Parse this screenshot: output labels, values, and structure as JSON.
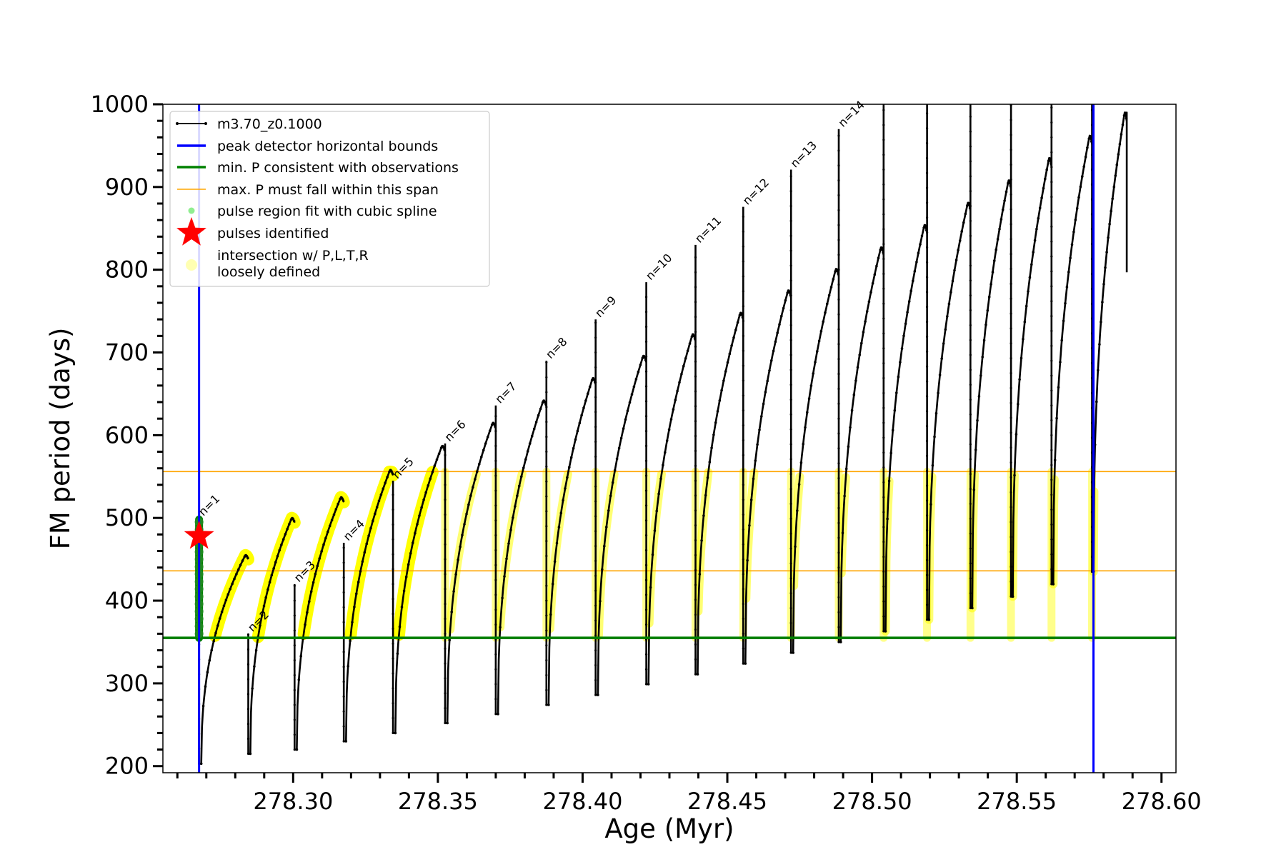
{
  "chart_data": {
    "type": "line",
    "title": "",
    "xlabel": "Age (Myr)",
    "ylabel": "FM period (days)",
    "xlim": [
      278.255,
      278.605
    ],
    "ylim": [
      192,
      1000
    ],
    "x_ticks": [
      278.3,
      278.35,
      278.4,
      278.45,
      278.5,
      278.55,
      278.6
    ],
    "x_tick_labels": [
      "278.30",
      "278.35",
      "278.40",
      "278.45",
      "278.50",
      "278.55",
      "278.60"
    ],
    "y_ticks": [
      200,
      300,
      400,
      500,
      600,
      700,
      800,
      900,
      1000
    ],
    "y_tick_labels": [
      "200",
      "300",
      "400",
      "500",
      "600",
      "700",
      "800",
      "900",
      "1000"
    ],
    "grid": false,
    "legend_position": "top-left",
    "legend": [
      {
        "key": "track",
        "label": "m3.70_z0.1000",
        "color": "#000000"
      },
      {
        "key": "bounds",
        "label": "peak detector horizontal bounds",
        "color": "#0000ff"
      },
      {
        "key": "min_p",
        "label": "min. P consistent with observations",
        "color": "#008000"
      },
      {
        "key": "max_p",
        "label": "max. P must fall within this span",
        "color": "#ffa500"
      },
      {
        "key": "spline",
        "label": "pulse region fit with cubic spline",
        "color": "#90ee90"
      },
      {
        "key": "pulses",
        "label": "pulses identified",
        "color": "#ff0000"
      },
      {
        "key": "intersect",
        "label": "intersection w/ P,L,T,R",
        "label2": "loosely defined",
        "color": "#ffff00"
      }
    ],
    "vertical_bounds": [
      278.2675,
      278.5765
    ],
    "min_period": 355,
    "max_period_span": [
      436,
      556
    ],
    "pulse_identified": {
      "x": 278.2675,
      "y": 478
    },
    "track_series": {
      "name": "m3.70_z0.1000",
      "note_cycles": [
        {
          "n": "n=1",
          "start": 278.2675,
          "end": 278.2845,
          "min": 203,
          "max": 455,
          "spike": 500
        },
        {
          "n": "n=2",
          "start": 278.2845,
          "end": 278.3005,
          "min": 215,
          "max": 500,
          "spike": 360
        },
        {
          "n": "n=3",
          "start": 278.3005,
          "end": 278.3175,
          "min": 220,
          "max": 525,
          "spike": 420
        },
        {
          "n": "n=4",
          "start": 278.3175,
          "end": 278.3345,
          "min": 230,
          "max": 558,
          "spike": 470
        },
        {
          "n": "n=5",
          "start": 278.3345,
          "end": 278.3525,
          "min": 240,
          "max": 587,
          "spike": 545
        },
        {
          "n": "n=6",
          "start": 278.3525,
          "end": 278.37,
          "min": 252,
          "max": 615,
          "spike": 590
        },
        {
          "n": "n=7",
          "start": 278.37,
          "end": 278.3875,
          "min": 263,
          "max": 642,
          "spike": 636
        },
        {
          "n": "n=8",
          "start": 278.3875,
          "end": 278.4045,
          "min": 274,
          "max": 669,
          "spike": 690
        },
        {
          "n": "n=9",
          "start": 278.4045,
          "end": 278.422,
          "min": 286,
          "max": 696,
          "spike": 740
        },
        {
          "n": "n=10",
          "start": 278.422,
          "end": 278.439,
          "min": 299,
          "max": 722,
          "spike": 785
        },
        {
          "n": "n=11",
          "start": 278.439,
          "end": 278.4555,
          "min": 311,
          "max": 748,
          "spike": 830
        },
        {
          "n": "n=12",
          "start": 278.4555,
          "end": 278.472,
          "min": 324,
          "max": 775,
          "spike": 876
        },
        {
          "n": "n=13",
          "start": 278.472,
          "end": 278.4885,
          "min": 337,
          "max": 801,
          "spike": 921
        },
        {
          "n": "n=14",
          "start": 278.4885,
          "end": 278.504,
          "min": 350,
          "max": 827,
          "spike": 970
        },
        {
          "n": "",
          "start": 278.504,
          "end": 278.519,
          "min": 363,
          "max": 854,
          "spike": 1000
        },
        {
          "n": "",
          "start": 278.519,
          "end": 278.534,
          "min": 377,
          "max": 881,
          "spike": 1000
        },
        {
          "n": "",
          "start": 278.534,
          "end": 278.548,
          "min": 391,
          "max": 908,
          "spike": 1000
        },
        {
          "n": "",
          "start": 278.548,
          "end": 278.562,
          "min": 405,
          "max": 935,
          "spike": 1000
        },
        {
          "n": "",
          "start": 278.562,
          "end": 278.576,
          "min": 420,
          "max": 962,
          "spike": 1000
        },
        {
          "n": "",
          "start": 278.576,
          "end": 278.588,
          "min": 435,
          "max": 990,
          "spike": 1000
        }
      ],
      "final_point": {
        "x": 278.588,
        "y": 797
      }
    }
  }
}
